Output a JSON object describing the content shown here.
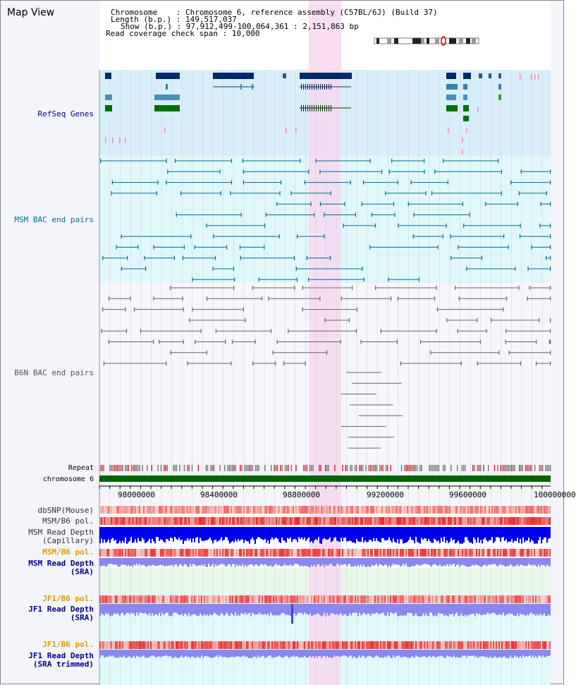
{
  "app": {
    "title": "Map View"
  },
  "header": {
    "chromosome": "Chromosome    : Chromosome 6, reference assembly (C57BL/6J) (Build 37)",
    "length": "Length (b.p.) : 149,517,037",
    "show": "Show (b.p.) : 97,912,499-100,064,361 : 2,151,863 bp",
    "coverage": "Read coverage check span : 10,000"
  },
  "tracks": {
    "refseq": "RefSeq Genes",
    "msm_bac": "MSM BAC end pairs",
    "b6n_bac": "B6N BAC end pairs",
    "repeat": "Repeat",
    "chromosome": "chromosome 6",
    "dbsnp": "dbSNP(Mouse)",
    "msm_b6_pol_1": "MSM/B6 pol.",
    "msm_read_depth_cap_1": "MSM Read Depth",
    "msm_read_depth_cap_2": "(Capillary)",
    "msm_b6_pol_2": "MSM/B6 pol.",
    "msm_read_depth_sra_1": "MSM Read Depth",
    "msm_read_depth_sra_2": "(SRA)",
    "jf1_b6_pol_1": "JF1/B6 pol.",
    "jf1_read_depth_sra_1": "JF1 Read Depth",
    "jf1_read_depth_sra_2": "(SRA)",
    "jf1_b6_pol_2": "JF1/B6 pol.",
    "jf1_read_depth_trim_1": "JF1 Read Depth",
    "jf1_read_depth_trim_2": "(SRA trimmed)"
  },
  "axis": {
    "ticks": [
      "98000000",
      "98400000",
      "98800000",
      "99200000",
      "99600000",
      "100000000"
    ]
  },
  "colors": {
    "gene_navy": "#002a66",
    "gene_teal": "#4a90b8",
    "gene_green": "#007000",
    "msm_line": "#006e96",
    "b6n_line": "#666666",
    "highlight": "#f8d8f0",
    "chromosome_bar": "#006400",
    "depth_blue": "#0000ee",
    "depth_light": "#8888ee"
  }
}
